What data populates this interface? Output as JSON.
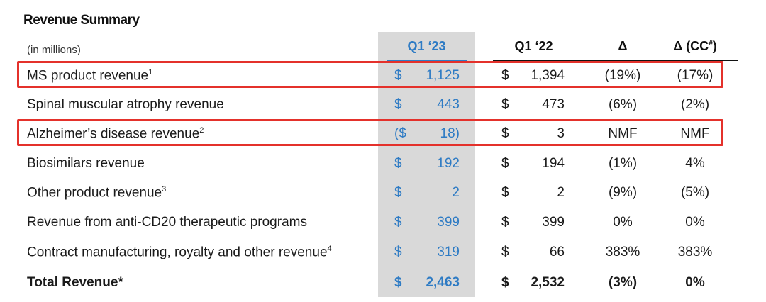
{
  "title": "Revenue Summary",
  "header": {
    "units": "(in millions)",
    "q1_23": "Q1 ‘23",
    "q1_22": "Q1 ‘22",
    "delta": "Δ",
    "delta_cc": "Δ (CC",
    "delta_cc_sup": "#",
    "delta_cc_close": ")"
  },
  "colors": {
    "accent_blue": "#2e7bc4",
    "highlight_red": "#e4312b",
    "band_gray": "#d9d9d9"
  },
  "rows": [
    {
      "label": "MS product revenue",
      "sup": "1",
      "cur23": "$",
      "val23": "1,125",
      "cur22": "$",
      "val22": "1,394",
      "delta": "(19%)",
      "delta_cc": "(17%)",
      "highlighted": true
    },
    {
      "label": "Spinal muscular atrophy revenue",
      "sup": "",
      "cur23": "$",
      "val23": "443",
      "cur22": "$",
      "val22": "473",
      "delta": "(6%)",
      "delta_cc": "(2%)",
      "highlighted": false
    },
    {
      "label": "Alzheimer’s disease revenue",
      "sup": "2",
      "cur23": "($",
      "val23": "18)",
      "cur22": "$",
      "val22": "3",
      "delta": "NMF",
      "delta_cc": "NMF",
      "highlighted": true
    },
    {
      "label": "Biosimilars revenue",
      "sup": "",
      "cur23": "$",
      "val23": "192",
      "cur22": "$",
      "val22": "194",
      "delta": "(1%)",
      "delta_cc": "4%",
      "highlighted": false
    },
    {
      "label": "Other product revenue",
      "sup": "3",
      "cur23": "$",
      "val23": "2",
      "cur22": "$",
      "val22": "2",
      "delta": "(9%)",
      "delta_cc": "(5%)",
      "highlighted": false
    },
    {
      "label": "Revenue from anti-CD20 therapeutic programs",
      "sup": "",
      "cur23": "$",
      "val23": "399",
      "cur22": "$",
      "val22": "399",
      "delta": "0%",
      "delta_cc": "0%",
      "highlighted": false
    },
    {
      "label": "Contract manufacturing, royalty and other revenue",
      "sup": "4",
      "cur23": "$",
      "val23": "319",
      "cur22": "$",
      "val22": "66",
      "delta": "383%",
      "delta_cc": "383%",
      "highlighted": false
    },
    {
      "label": "Total Revenue*",
      "sup": "",
      "cur23": "$",
      "val23": "2,463",
      "cur22": "$",
      "val22": "2,532",
      "delta": "(3%)",
      "delta_cc": "0%",
      "highlighted": false,
      "bold": true
    }
  ]
}
